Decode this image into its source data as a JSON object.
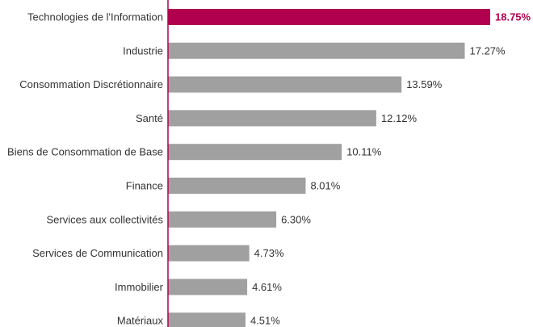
{
  "chart_data": {
    "type": "bar",
    "orientation": "horizontal",
    "title": "",
    "xlabel": "",
    "ylabel": "",
    "xlim": [
      0,
      20
    ],
    "grid": false,
    "legend": "none",
    "highlight_color": "#b0004e",
    "bar_color": "#a0a0a0",
    "axis_color": "#b0004e",
    "categories": [
      "Technologies de l'Information",
      "Industrie",
      "Consommation Discrétionnaire",
      "Santé",
      "Biens de Consommation de Base",
      "Finance",
      "Services aux collectivités",
      "Services de Communication",
      "Immobilier",
      "Matériaux"
    ],
    "values": [
      18.75,
      17.27,
      13.59,
      12.12,
      10.11,
      8.01,
      6.3,
      4.73,
      4.61,
      4.51
    ],
    "value_labels": [
      "18.75%",
      "17.27%",
      "13.59%",
      "12.12%",
      "10.11%",
      "8.01%",
      "6.30%",
      "4.73%",
      "4.61%",
      "4.51%"
    ],
    "highlighted_index": 0
  }
}
